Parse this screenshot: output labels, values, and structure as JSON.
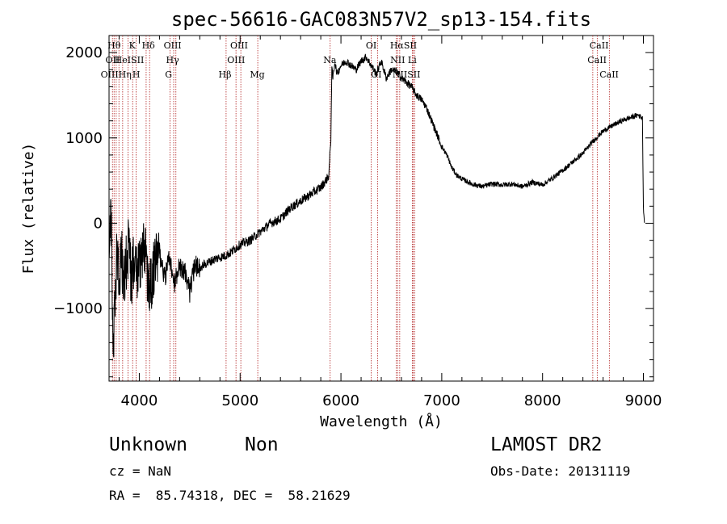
{
  "chart_data": {
    "type": "line",
    "title": "spec-56616-GAC083N57V2_sp13-154.fits",
    "xlabel": "Wavelength (Å)",
    "ylabel": "Flux (relative)",
    "xlim": [
      3700,
      9100
    ],
    "ylim": [
      -1850,
      2200
    ],
    "xticks": [
      4000,
      5000,
      6000,
      7000,
      8000,
      9000
    ],
    "xtick_labels": [
      "4000",
      "5000",
      "6000",
      "7000",
      "8000",
      "9000"
    ],
    "yticks": [
      -1000,
      0,
      1000,
      2000
    ],
    "ytick_labels": [
      "−1000",
      "0",
      "1000",
      "2000"
    ],
    "grid": false,
    "line_color": "#000000",
    "marker_color": "#b22222",
    "series": [
      {
        "x": [
          3700,
          3720,
          3740,
          3760,
          3780,
          3800,
          3820,
          3840,
          3860,
          3880,
          3900,
          3920,
          3950,
          3980,
          4000,
          4050,
          4100,
          4150,
          4200,
          4250,
          4300,
          4350,
          4400,
          4450,
          4500,
          4550,
          4600,
          4650,
          4700,
          4750,
          4800,
          4850,
          4900,
          4950,
          5000,
          5100,
          5200,
          5300,
          5400,
          5500,
          5600,
          5700,
          5800,
          5850,
          5880,
          5900,
          5910,
          5920,
          5940,
          5960,
          6000,
          6050,
          6100,
          6150,
          6200,
          6250,
          6300,
          6350,
          6400,
          6450,
          6500,
          6550,
          6600,
          6650,
          6700,
          6750,
          6800,
          6850,
          6900,
          6950,
          7000,
          7050,
          7100,
          7150,
          7200,
          7300,
          7400,
          7500,
          7600,
          7700,
          7800,
          7900,
          8000,
          8100,
          8200,
          8300,
          8400,
          8500,
          8600,
          8700,
          8800,
          8900,
          8950,
          8990,
          9000,
          9010
        ],
        "y": [
          -600,
          300,
          -1500,
          -900,
          -300,
          -700,
          -200,
          -800,
          -500,
          -400,
          -200,
          -700,
          -400,
          -600,
          -500,
          -300,
          -800,
          -500,
          -350,
          -650,
          -400,
          -700,
          -500,
          -550,
          -800,
          -500,
          -520,
          -480,
          -450,
          -420,
          -400,
          -380,
          -350,
          -300,
          -250,
          -200,
          -100,
          0,
          50,
          180,
          260,
          340,
          420,
          500,
          560,
          1000,
          1800,
          1700,
          1900,
          1750,
          1850,
          1900,
          1850,
          1800,
          1900,
          1950,
          1850,
          1750,
          1900,
          1700,
          1800,
          1780,
          1700,
          1650,
          1600,
          1500,
          1450,
          1350,
          1200,
          1050,
          900,
          800,
          650,
          560,
          520,
          460,
          430,
          460,
          450,
          460,
          430,
          480,
          450,
          530,
          620,
          720,
          820,
          960,
          1080,
          1150,
          1210,
          1250,
          1270,
          1230,
          200,
          0
        ]
      }
    ],
    "lines": [
      {
        "x": 3734,
        "label": "OII"
      },
      {
        "x": 3750,
        "label": "OIII"
      },
      {
        "x": 3771,
        "label": "Hθ"
      },
      {
        "x": 3798,
        "label": "Hη"
      },
      {
        "x": 3835,
        "label": "Hη"
      },
      {
        "x": 3889,
        "label": "HeI"
      },
      {
        "x": 3934,
        "label": "K"
      },
      {
        "x": 3969,
        "label": "H"
      },
      {
        "x": 4068,
        "label": "SII"
      },
      {
        "x": 4102,
        "label": "Hδ"
      },
      {
        "x": 4304,
        "label": "G"
      },
      {
        "x": 4341,
        "label": "Hγ"
      },
      {
        "x": 4363,
        "label": "OIII"
      },
      {
        "x": 4861,
        "label": "Hβ"
      },
      {
        "x": 4959,
        "label": "OIII"
      },
      {
        "x": 5007,
        "label": "OIII"
      },
      {
        "x": 5175,
        "label": "Mg"
      },
      {
        "x": 5893,
        "label": "Na"
      },
      {
        "x": 6300,
        "label": "OI"
      },
      {
        "x": 6363,
        "label": "OI"
      },
      {
        "x": 6548,
        "label": "NII"
      },
      {
        "x": 6563,
        "label": "Hα"
      },
      {
        "x": 6583,
        "label": "NII"
      },
      {
        "x": 6708,
        "label": "Li"
      },
      {
        "x": 6716,
        "label": "SII"
      },
      {
        "x": 6731,
        "label": "SII"
      },
      {
        "x": 8498,
        "label": "CaII"
      },
      {
        "x": 8542,
        "label": "CaII"
      },
      {
        "x": 8662,
        "label": "CaII"
      }
    ],
    "line_labels": [
      {
        "text": "Hθ",
        "x": 3750,
        "row": 1
      },
      {
        "text": "K",
        "x": 3930,
        "row": 1
      },
      {
        "text": "Hδ",
        "x": 4090,
        "row": 1
      },
      {
        "text": "OIII",
        "x": 4330,
        "row": 1
      },
      {
        "text": "OIII",
        "x": 4990,
        "row": 1
      },
      {
        "text": "OI",
        "x": 6300,
        "row": 1
      },
      {
        "text": "HαSII",
        "x": 6620,
        "row": 1
      },
      {
        "text": "CaII",
        "x": 8560,
        "row": 1
      },
      {
        "text": "OII",
        "x": 3735,
        "row": 2
      },
      {
        "text": "HeISII",
        "x": 3900,
        "row": 2
      },
      {
        "text": "Hγ",
        "x": 4330,
        "row": 2
      },
      {
        "text": "OIII",
        "x": 4960,
        "row": 2
      },
      {
        "text": "Na",
        "x": 5890,
        "row": 2
      },
      {
        "text": "NII Li",
        "x": 6620,
        "row": 2
      },
      {
        "text": "CaII",
        "x": 8540,
        "row": 2
      },
      {
        "text": "OIIIHη",
        "x": 3770,
        "row": 3
      },
      {
        "text": "H",
        "x": 3970,
        "row": 3
      },
      {
        "text": "G",
        "x": 4290,
        "row": 3
      },
      {
        "text": "Hβ",
        "x": 4850,
        "row": 3
      },
      {
        "text": "Mg",
        "x": 5170,
        "row": 3
      },
      {
        "text": "OI",
        "x": 6350,
        "row": 3
      },
      {
        "text": "NIISII",
        "x": 6650,
        "row": 3
      },
      {
        "text": "CaII",
        "x": 8660,
        "row": 3
      }
    ]
  },
  "info": {
    "class": "Unknown",
    "subclass": "Non",
    "cz": "cz = NaN",
    "radec": "RA =  85.74318, DEC =  58.21629",
    "survey": "LAMOST DR2",
    "obsdate": "Obs-Date: 20131119"
  }
}
